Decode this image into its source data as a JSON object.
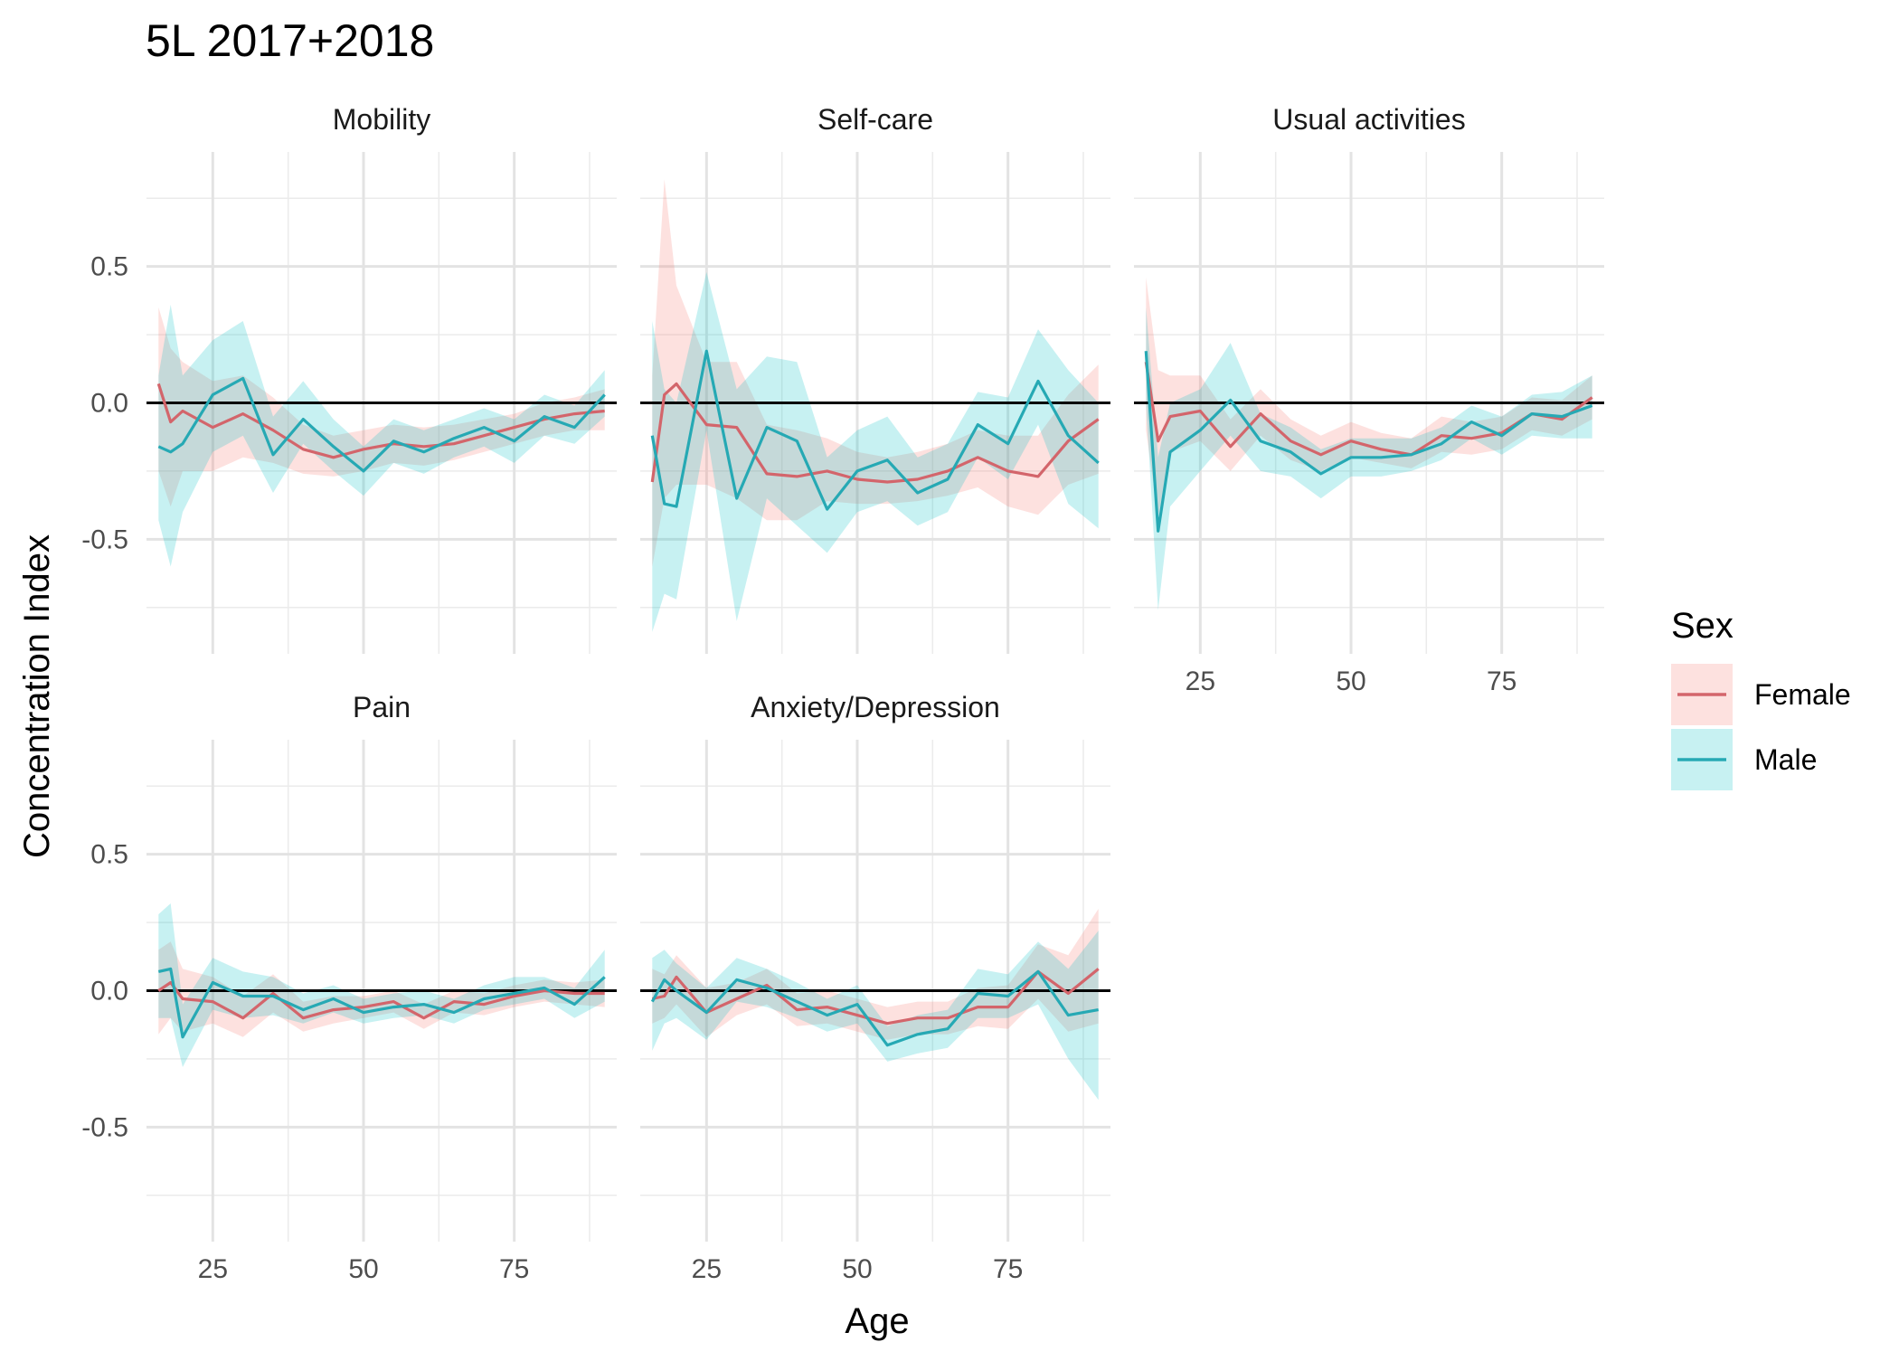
{
  "chart_data": {
    "type": "line",
    "title": "5L 2017+2018",
    "xlabel": "Age",
    "ylabel": "Concentration Index",
    "xlim": [
      14,
      92
    ],
    "ylim": [
      -0.92,
      0.92
    ],
    "x_ticks": [
      25,
      50,
      75
    ],
    "y_ticks": [
      0.5,
      0.0,
      -0.5
    ],
    "y_tick_labels": [
      "0.5",
      "0.0",
      "-0.5"
    ],
    "reference_line": 0,
    "grid": true,
    "legend": {
      "title": "Sex",
      "position": "right",
      "entries": [
        {
          "label": "Female",
          "color": "#D3656B",
          "fill": "#F8766D"
        },
        {
          "label": "Male",
          "color": "#26A9B4",
          "fill": "#00BFC4"
        }
      ]
    },
    "facets": [
      {
        "name": "Mobility",
        "series": [
          {
            "name": "Female",
            "x": [
              16,
              18,
              20,
              25,
              30,
              35,
              40,
              45,
              50,
              55,
              60,
              65,
              70,
              75,
              80,
              85,
              90
            ],
            "y": [
              0.07,
              -0.07,
              -0.03,
              -0.09,
              -0.04,
              -0.1,
              -0.17,
              -0.2,
              -0.17,
              -0.15,
              -0.16,
              -0.15,
              -0.12,
              -0.09,
              -0.06,
              -0.04,
              -0.03
            ],
            "lower": [
              -0.25,
              -0.38,
              -0.25,
              -0.25,
              -0.2,
              -0.22,
              -0.26,
              -0.27,
              -0.25,
              -0.22,
              -0.23,
              -0.21,
              -0.18,
              -0.15,
              -0.12,
              -0.1,
              -0.1
            ],
            "upper": [
              0.35,
              0.2,
              0.15,
              0.08,
              0.1,
              0.02,
              -0.08,
              -0.12,
              -0.1,
              -0.08,
              -0.09,
              -0.08,
              -0.06,
              -0.04,
              0.0,
              0.02,
              0.05
            ]
          },
          {
            "name": "Male",
            "x": [
              16,
              18,
              20,
              25,
              30,
              35,
              40,
              45,
              50,
              55,
              60,
              65,
              70,
              75,
              80,
              85,
              90
            ],
            "y": [
              -0.16,
              -0.18,
              -0.15,
              0.03,
              0.09,
              -0.19,
              -0.06,
              -0.16,
              -0.25,
              -0.14,
              -0.18,
              -0.13,
              -0.09,
              -0.14,
              -0.05,
              -0.09,
              0.03
            ],
            "lower": [
              -0.43,
              -0.6,
              -0.4,
              -0.18,
              -0.12,
              -0.33,
              -0.15,
              -0.25,
              -0.34,
              -0.22,
              -0.26,
              -0.2,
              -0.16,
              -0.22,
              -0.12,
              -0.15,
              -0.05
            ],
            "upper": [
              0.1,
              0.36,
              0.1,
              0.23,
              0.3,
              -0.05,
              0.08,
              -0.06,
              -0.16,
              -0.06,
              -0.1,
              -0.06,
              -0.02,
              -0.06,
              0.03,
              -0.01,
              0.12
            ]
          }
        ]
      },
      {
        "name": "Self-care",
        "series": [
          {
            "name": "Female",
            "x": [
              16,
              18,
              20,
              25,
              30,
              35,
              40,
              45,
              50,
              55,
              60,
              65,
              70,
              75,
              80,
              85,
              90
            ],
            "y": [
              -0.29,
              0.03,
              0.07,
              -0.08,
              -0.09,
              -0.26,
              -0.27,
              -0.25,
              -0.28,
              -0.29,
              -0.28,
              -0.25,
              -0.2,
              -0.25,
              -0.27,
              -0.14,
              -0.06
            ],
            "lower": [
              -0.6,
              -0.35,
              -0.3,
              -0.3,
              -0.35,
              -0.43,
              -0.43,
              -0.36,
              -0.37,
              -0.37,
              -0.36,
              -0.34,
              -0.31,
              -0.38,
              -0.41,
              -0.3,
              -0.26
            ],
            "upper": [
              0.1,
              0.82,
              0.43,
              0.15,
              0.15,
              -0.08,
              -0.1,
              -0.13,
              -0.18,
              -0.2,
              -0.18,
              -0.15,
              -0.1,
              -0.12,
              -0.12,
              0.03,
              0.14
            ]
          },
          {
            "name": "Male",
            "x": [
              16,
              18,
              20,
              25,
              30,
              35,
              40,
              45,
              50,
              55,
              60,
              65,
              70,
              75,
              80,
              85,
              90
            ],
            "y": [
              -0.12,
              -0.37,
              -0.38,
              0.19,
              -0.35,
              -0.09,
              -0.14,
              -0.39,
              -0.25,
              -0.21,
              -0.33,
              -0.28,
              -0.08,
              -0.15,
              0.08,
              -0.12,
              -0.22
            ],
            "lower": [
              -0.84,
              -0.7,
              -0.72,
              -0.1,
              -0.8,
              -0.35,
              -0.45,
              -0.55,
              -0.4,
              -0.36,
              -0.45,
              -0.4,
              -0.2,
              -0.28,
              -0.08,
              -0.37,
              -0.46
            ],
            "upper": [
              0.3,
              0.05,
              0.0,
              0.48,
              0.05,
              0.17,
              0.15,
              -0.2,
              -0.1,
              -0.05,
              -0.2,
              -0.15,
              0.04,
              0.02,
              0.27,
              0.12,
              0.0
            ]
          }
        ]
      },
      {
        "name": "Usual activities",
        "series": [
          {
            "name": "Female",
            "x": [
              16,
              18,
              20,
              25,
              30,
              35,
              40,
              45,
              50,
              55,
              60,
              65,
              70,
              75,
              80,
              85,
              90
            ],
            "y": [
              0.15,
              -0.14,
              -0.05,
              -0.03,
              -0.16,
              -0.04,
              -0.14,
              -0.19,
              -0.14,
              -0.17,
              -0.19,
              -0.12,
              -0.13,
              -0.11,
              -0.04,
              -0.06,
              0.02
            ],
            "lower": [
              -0.1,
              -0.42,
              -0.18,
              -0.14,
              -0.25,
              -0.12,
              -0.21,
              -0.25,
              -0.2,
              -0.22,
              -0.24,
              -0.18,
              -0.19,
              -0.17,
              -0.1,
              -0.12,
              -0.06
            ],
            "upper": [
              0.46,
              0.12,
              0.1,
              0.1,
              -0.06,
              0.05,
              -0.06,
              -0.12,
              -0.07,
              -0.11,
              -0.13,
              -0.05,
              -0.07,
              -0.05,
              0.02,
              0.01,
              0.1
            ]
          },
          {
            "name": "Male",
            "x": [
              16,
              18,
              20,
              25,
              30,
              35,
              40,
              45,
              50,
              55,
              60,
              65,
              70,
              75,
              80,
              85,
              90
            ],
            "y": [
              0.19,
              -0.47,
              -0.18,
              -0.1,
              0.01,
              -0.14,
              -0.18,
              -0.26,
              -0.2,
              -0.2,
              -0.19,
              -0.15,
              -0.07,
              -0.12,
              -0.04,
              -0.05,
              -0.01
            ],
            "lower": [
              0.0,
              -0.76,
              -0.38,
              -0.25,
              -0.12,
              -0.25,
              -0.27,
              -0.35,
              -0.27,
              -0.27,
              -0.25,
              -0.21,
              -0.13,
              -0.19,
              -0.12,
              -0.13,
              -0.13
            ],
            "upper": [
              0.35,
              -0.2,
              0.0,
              0.05,
              0.22,
              -0.04,
              -0.09,
              -0.17,
              -0.13,
              -0.13,
              -0.13,
              -0.09,
              -0.01,
              -0.05,
              0.03,
              0.04,
              0.1
            ]
          }
        ]
      },
      {
        "name": "Pain",
        "series": [
          {
            "name": "Female",
            "x": [
              16,
              18,
              20,
              25,
              30,
              35,
              40,
              45,
              50,
              55,
              60,
              65,
              70,
              75,
              80,
              85,
              90
            ],
            "y": [
              0.0,
              0.03,
              -0.03,
              -0.04,
              -0.1,
              -0.01,
              -0.1,
              -0.07,
              -0.06,
              -0.04,
              -0.1,
              -0.04,
              -0.05,
              -0.02,
              0.0,
              -0.01,
              -0.01
            ],
            "lower": [
              -0.16,
              -0.1,
              -0.15,
              -0.12,
              -0.17,
              -0.08,
              -0.15,
              -0.12,
              -0.1,
              -0.08,
              -0.14,
              -0.08,
              -0.09,
              -0.06,
              -0.04,
              -0.05,
              -0.06
            ],
            "upper": [
              0.15,
              0.18,
              0.08,
              0.05,
              -0.02,
              0.06,
              -0.04,
              -0.02,
              -0.02,
              0.0,
              -0.05,
              0.0,
              -0.01,
              0.02,
              0.04,
              0.03,
              0.04
            ]
          },
          {
            "name": "Male",
            "x": [
              16,
              18,
              20,
              25,
              30,
              35,
              40,
              45,
              50,
              55,
              60,
              65,
              70,
              75,
              80,
              85,
              90
            ],
            "y": [
              0.07,
              0.08,
              -0.17,
              0.03,
              -0.02,
              -0.02,
              -0.07,
              -0.03,
              -0.08,
              -0.06,
              -0.05,
              -0.08,
              -0.03,
              -0.01,
              0.01,
              -0.05,
              0.05
            ],
            "lower": [
              -0.1,
              -0.1,
              -0.28,
              -0.07,
              -0.1,
              -0.09,
              -0.12,
              -0.08,
              -0.12,
              -0.1,
              -0.09,
              -0.12,
              -0.07,
              -0.05,
              -0.03,
              -0.1,
              -0.04
            ],
            "upper": [
              0.28,
              0.32,
              -0.05,
              0.12,
              0.07,
              0.05,
              -0.01,
              0.02,
              -0.03,
              -0.01,
              0.0,
              -0.03,
              0.02,
              0.05,
              0.05,
              0.01,
              0.15
            ]
          }
        ]
      },
      {
        "name": "Anxiety/Depression",
        "series": [
          {
            "name": "Female",
            "x": [
              16,
              18,
              20,
              25,
              30,
              35,
              40,
              45,
              50,
              55,
              60,
              65,
              70,
              75,
              80,
              85,
              90
            ],
            "y": [
              -0.03,
              -0.02,
              0.05,
              -0.08,
              -0.03,
              0.02,
              -0.07,
              -0.06,
              -0.09,
              -0.12,
              -0.1,
              -0.1,
              -0.06,
              -0.06,
              0.07,
              -0.01,
              0.08
            ],
            "lower": [
              -0.12,
              -0.1,
              -0.05,
              -0.17,
              -0.09,
              -0.05,
              -0.13,
              -0.12,
              -0.15,
              -0.18,
              -0.16,
              -0.16,
              -0.13,
              -0.14,
              -0.03,
              -0.15,
              -0.12
            ],
            "upper": [
              0.08,
              0.06,
              0.13,
              0.01,
              0.03,
              0.08,
              -0.01,
              0.0,
              -0.03,
              -0.06,
              -0.04,
              -0.04,
              0.01,
              0.02,
              0.17,
              0.13,
              0.3
            ]
          },
          {
            "name": "Male",
            "x": [
              16,
              18,
              20,
              25,
              30,
              35,
              40,
              45,
              50,
              55,
              60,
              65,
              70,
              75,
              80,
              85,
              90
            ],
            "y": [
              -0.04,
              0.04,
              0.0,
              -0.08,
              0.04,
              0.01,
              -0.04,
              -0.09,
              -0.05,
              -0.2,
              -0.16,
              -0.14,
              -0.01,
              -0.02,
              0.07,
              -0.09,
              -0.07
            ],
            "lower": [
              -0.22,
              -0.12,
              -0.1,
              -0.18,
              -0.04,
              -0.06,
              -0.1,
              -0.15,
              -0.12,
              -0.26,
              -0.23,
              -0.21,
              -0.1,
              -0.1,
              -0.05,
              -0.25,
              -0.4
            ],
            "upper": [
              0.12,
              0.15,
              0.1,
              0.01,
              0.12,
              0.08,
              0.03,
              -0.03,
              0.02,
              -0.13,
              -0.09,
              -0.07,
              0.08,
              0.06,
              0.18,
              0.08,
              0.22
            ]
          }
        ]
      }
    ]
  }
}
